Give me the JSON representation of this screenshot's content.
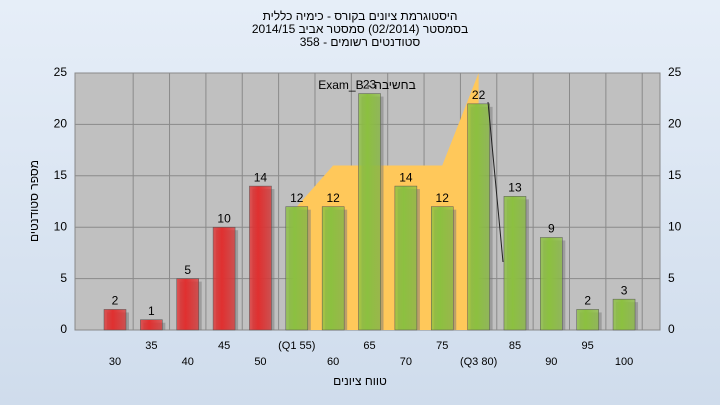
{
  "chart_data": {
    "type": "bar",
    "title": [
      "היסטוגרמת ציונים בקורס - כימיה כללית",
      "בסמסטר  (02/2014)  סמסטר אביב 2014/15",
      "סטודנטים רשומים - 358"
    ],
    "annotation": "בחשיבה - Exam_B",
    "x_label": "טווח ציונים",
    "y_label": "מספר סטודנטים",
    "categories": [
      "30",
      "35",
      "40",
      "45",
      "50",
      "(Q1 55)",
      "60",
      "65",
      "70",
      "75",
      "(Q3 80)",
      "85",
      "90",
      "95",
      "100"
    ],
    "values": [
      2,
      1,
      5,
      10,
      14,
      12,
      12,
      23,
      14,
      12,
      22,
      13,
      9,
      2,
      3
    ],
    "colors": [
      "#e03030",
      "#e03030",
      "#e03030",
      "#e03030",
      "#e03030",
      "#8cc040",
      "#8cc040",
      "#8cc040",
      "#8cc040",
      "#8cc040",
      "#8cc040",
      "#8cc040",
      "#8cc040",
      "#8cc040",
      "#8cc040"
    ],
    "area": {
      "color": "#ffc85a",
      "values": [
        null,
        null,
        null,
        null,
        null,
        12,
        16,
        16,
        16,
        16,
        25,
        null,
        null,
        null,
        null
      ]
    },
    "ylim": [
      0,
      25
    ],
    "yticks": [
      0,
      5,
      10,
      15,
      20,
      25
    ],
    "grid": true
  }
}
